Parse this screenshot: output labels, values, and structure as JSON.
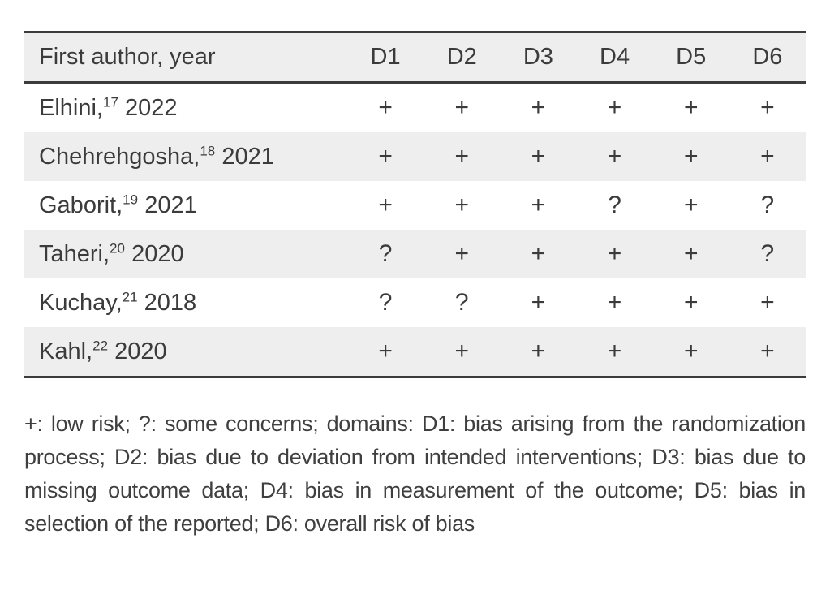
{
  "table": {
    "header": {
      "author": "First author, year",
      "domains": [
        "D1",
        "D2",
        "D3",
        "D4",
        "D5",
        "D6"
      ]
    },
    "rows": [
      {
        "author": "Elhini,",
        "ref": "17",
        "year": "2022",
        "marks": [
          "+",
          "+",
          "+",
          "+",
          "+",
          "+"
        ]
      },
      {
        "author": "Chehrehgosha,",
        "ref": "18",
        "year": "2021",
        "marks": [
          "+",
          "+",
          "+",
          "+",
          "+",
          "+"
        ]
      },
      {
        "author": "Gaborit,",
        "ref": "19",
        "year": "2021",
        "marks": [
          "+",
          "+",
          "+",
          "?",
          "+",
          "?"
        ]
      },
      {
        "author": "Taheri,",
        "ref": "20",
        "year": "2020",
        "marks": [
          "?",
          "+",
          "+",
          "+",
          "+",
          "?"
        ]
      },
      {
        "author": "Kuchay,",
        "ref": "21",
        "year": "2018",
        "marks": [
          "?",
          "?",
          "+",
          "+",
          "+",
          "+"
        ]
      },
      {
        "author": "Kahl,",
        "ref": "22",
        "year": "2020",
        "marks": [
          "+",
          "+",
          "+",
          "+",
          "+",
          "+"
        ]
      }
    ]
  },
  "footnote": {
    "text": "+: low risk; ?: some concerns; domains: D1: bias arising from the randomization process; D2: bias due to deviation from intended interventions; D3: bias due to missing outcome data; D4: bias in measurement of the outcome; D5: bias in selection of the reported; D6: overall risk of bias"
  },
  "colors": {
    "stripe": "#eeeeee",
    "rule": "#3c3c3c",
    "text": "#3b3b3b",
    "background": "#ffffff"
  }
}
